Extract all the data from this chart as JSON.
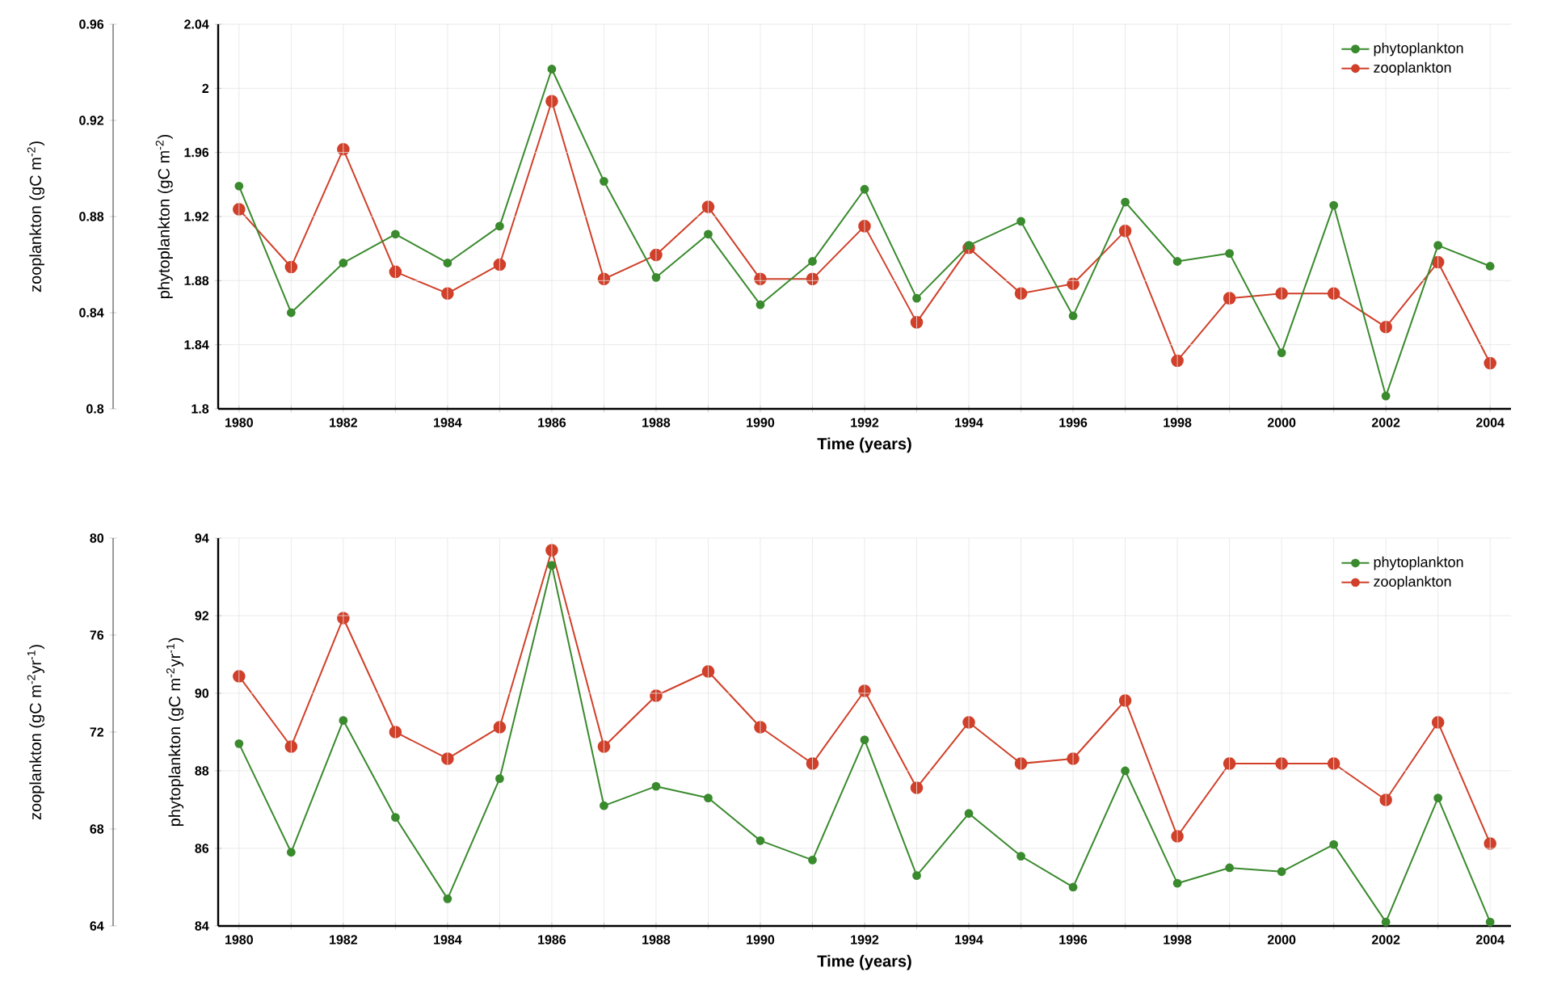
{
  "chart_data": [
    {
      "type": "line",
      "xlabel": "Time (years)",
      "ylabel": "phytoplankton (gC m$^{-2}$)",
      "y2label": "zooplankton (gC m$^{-2}$)",
      "x": [
        1980,
        1981,
        1982,
        1983,
        1984,
        1985,
        1986,
        1987,
        1988,
        1989,
        1990,
        1991,
        1992,
        1993,
        1994,
        1995,
        1996,
        1997,
        1998,
        1999,
        2000,
        2001,
        2002,
        2003,
        2004
      ],
      "xlim": [
        1979.6,
        2004.4
      ],
      "xticks": [
        1980,
        {
          "value": 1981,
          "label": null
        },
        1982,
        {
          "value": 1983,
          "label": null
        },
        1984,
        {
          "value": 1985,
          "label": null
        },
        1986,
        {
          "value": 1987,
          "label": null
        },
        1988,
        {
          "value": 1989,
          "label": null
        },
        1990,
        {
          "value": 1991,
          "label": null
        },
        1992,
        {
          "value": 1993,
          "label": null
        },
        1994,
        {
          "value": 1995,
          "label": null
        },
        1996,
        {
          "value": 1997,
          "label": null
        },
        1998,
        {
          "value": 1999,
          "label": null
        },
        2000,
        {
          "value": 2001,
          "label": null
        },
        2002,
        {
          "value": 2003,
          "label": null
        },
        2004
      ],
      "ylim": [
        1.8,
        2.04
      ],
      "yticks": [
        1.8,
        1.84,
        1.88,
        1.92,
        1.96,
        2,
        2.04
      ],
      "y2lim": [
        0.8,
        0.96
      ],
      "y2ticks": [
        0.8,
        0.84,
        0.88,
        0.92,
        0.96
      ],
      "grid": true,
      "legend": "top right",
      "marker": "circle",
      "line_style": "solid",
      "series": [
        {
          "name": "phytoplankton",
          "color": "#3a8a2e",
          "axis": "y",
          "values": [
            1.939,
            1.86,
            1.891,
            1.909,
            1.891,
            1.914,
            2.012,
            1.942,
            1.882,
            1.909,
            1.865,
            1.892,
            1.937,
            1.869,
            1.902,
            1.917,
            1.858,
            1.929,
            1.892,
            1.897,
            1.835,
            1.927,
            1.808,
            1.902,
            1.889
          ]
        },
        {
          "name": "zooplankton",
          "color": "#d0402a",
          "axis": "y2",
          "values": [
            0.883,
            0.859,
            0.908,
            0.857,
            0.848,
            0.86,
            0.928,
            0.854,
            0.864,
            0.884,
            0.854,
            0.854,
            0.876,
            0.836,
            0.867,
            0.848,
            0.852,
            0.874,
            0.82,
            0.846,
            0.848,
            0.848,
            0.834,
            0.861,
            0.819
          ]
        }
      ]
    },
    {
      "type": "line",
      "xlabel": "Time (years)",
      "ylabel": "phytoplankton (gC m$^{-2}$yr$^{-1}$)",
      "y2label": "zooplankton (gC m$^{-2}$yr$^{-1}$)",
      "x": [
        1980,
        1981,
        1982,
        1983,
        1984,
        1985,
        1986,
        1987,
        1988,
        1989,
        1990,
        1991,
        1992,
        1993,
        1994,
        1995,
        1996,
        1997,
        1998,
        1999,
        2000,
        2001,
        2002,
        2003,
        2004
      ],
      "xlim": [
        1979.6,
        2004.4
      ],
      "xticks": [
        1980,
        {
          "value": 1981,
          "label": null
        },
        1982,
        {
          "value": 1983,
          "label": null
        },
        1984,
        {
          "value": 1985,
          "label": null
        },
        1986,
        {
          "value": 1987,
          "label": null
        },
        1988,
        {
          "value": 1989,
          "label": null
        },
        1990,
        {
          "value": 1991,
          "label": null
        },
        1992,
        {
          "value": 1993,
          "label": null
        },
        1994,
        {
          "value": 1995,
          "label": null
        },
        1996,
        {
          "value": 1997,
          "label": null
        },
        1998,
        {
          "value": 1999,
          "label": null
        },
        2000,
        {
          "value": 2001,
          "label": null
        },
        2002,
        {
          "value": 2003,
          "label": null
        },
        2004
      ],
      "ylim": [
        84,
        94
      ],
      "yticks": [
        84,
        86,
        88,
        90,
        92,
        94
      ],
      "y2lim": [
        64,
        80
      ],
      "y2ticks": [
        64,
        68,
        72,
        76,
        80
      ],
      "grid": true,
      "legend": "top right",
      "marker": "circle",
      "line_style": "solid",
      "series": [
        {
          "name": "phytoplankton",
          "color": "#3a8a2e",
          "axis": "y",
          "values": [
            88.7,
            85.9,
            89.3,
            86.8,
            84.7,
            87.8,
            93.3,
            87.1,
            87.6,
            87.3,
            86.2,
            85.7,
            88.8,
            85.3,
            86.9,
            85.8,
            85.0,
            88.0,
            85.1,
            85.5,
            85.4,
            86.1,
            84.1,
            87.3,
            84.1
          ]
        },
        {
          "name": "zooplankton",
          "color": "#d0402a",
          "axis": "y2",
          "values": [
            74.3,
            71.4,
            76.7,
            72.0,
            70.9,
            72.2,
            79.5,
            71.4,
            73.5,
            74.5,
            72.2,
            70.7,
            73.7,
            69.7,
            72.4,
            70.7,
            70.9,
            73.3,
            67.7,
            70.7,
            70.7,
            70.7,
            69.2,
            72.4,
            67.4
          ]
        }
      ]
    }
  ]
}
